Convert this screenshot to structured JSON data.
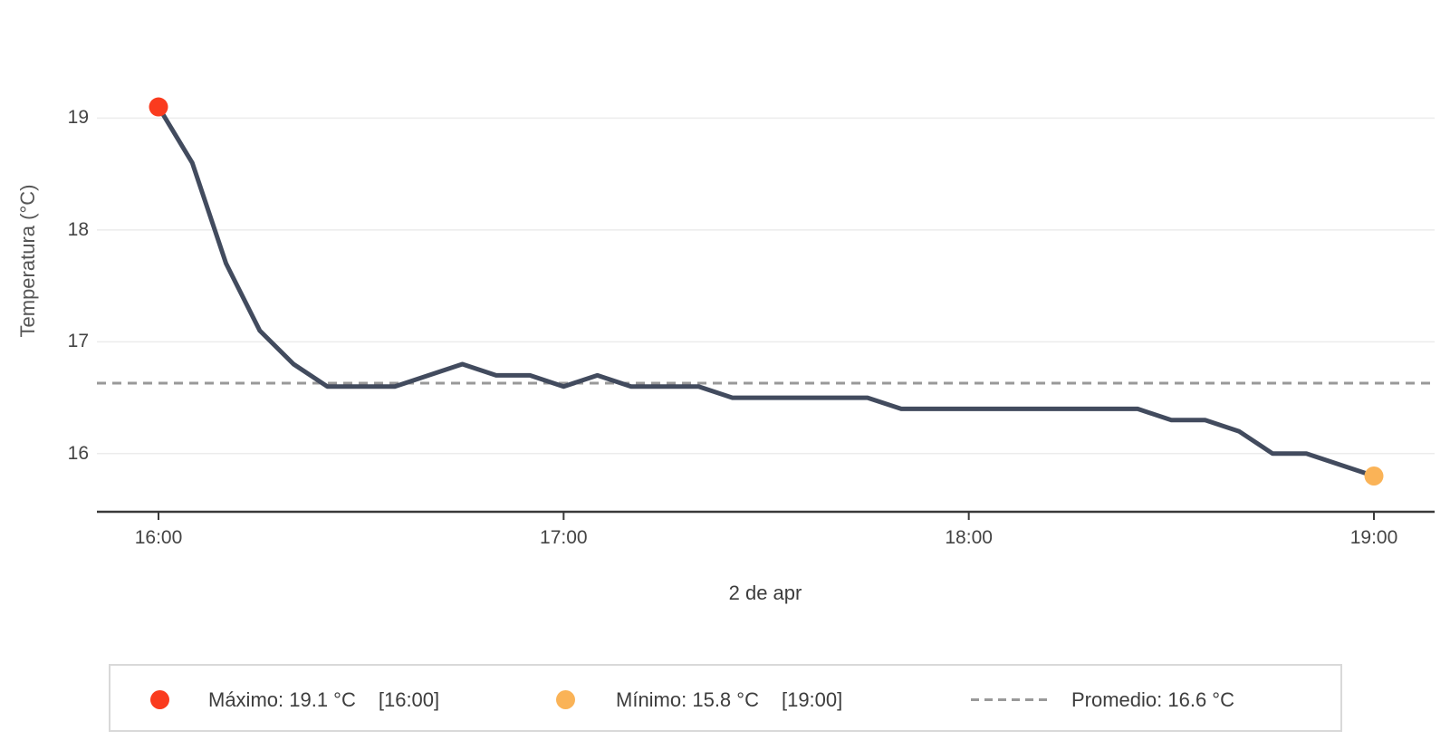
{
  "chart_data": {
    "type": "line",
    "title": "",
    "xlabel": "2 de apr",
    "ylabel": "Temperatura (°C)",
    "x": [
      "16:00",
      "16:05",
      "16:10",
      "16:15",
      "16:20",
      "16:25",
      "16:30",
      "16:35",
      "16:40",
      "16:45",
      "16:50",
      "16:55",
      "17:00",
      "17:05",
      "17:10",
      "17:15",
      "17:20",
      "17:25",
      "17:30",
      "17:35",
      "17:40",
      "17:45",
      "17:50",
      "17:55",
      "18:00",
      "18:05",
      "18:10",
      "18:15",
      "18:20",
      "18:25",
      "18:30",
      "18:35",
      "18:40",
      "18:45",
      "18:50",
      "18:55",
      "19:00"
    ],
    "values": [
      19.1,
      18.6,
      17.7,
      17.1,
      16.8,
      16.6,
      16.6,
      16.6,
      16.7,
      16.8,
      16.7,
      16.7,
      16.6,
      16.7,
      16.6,
      16.6,
      16.6,
      16.5,
      16.5,
      16.5,
      16.5,
      16.5,
      16.4,
      16.4,
      16.4,
      16.4,
      16.4,
      16.4,
      16.4,
      16.4,
      16.3,
      16.3,
      16.2,
      16.0,
      16.0,
      15.9,
      15.8
    ],
    "x_tick_labels": [
      "16:00",
      "17:00",
      "18:00",
      "19:00"
    ],
    "x_tick_indices": [
      0,
      12,
      24,
      36
    ],
    "y_ticks": [
      16,
      17,
      18,
      19
    ],
    "y_tick_labels": [
      "16",
      "17",
      "18",
      "19"
    ],
    "ylim": [
      15.48,
      19.57
    ],
    "grid": "horizontal",
    "legend_position": "bottom",
    "average_value": 16.63,
    "max": {
      "value": 19.1,
      "time": "16:00"
    },
    "min": {
      "value": 15.8,
      "time": "19:00"
    },
    "colors": {
      "line": "#424b5e",
      "max_marker": "#fa3b1e",
      "min_marker": "#fab357",
      "average": "#999999",
      "grid": "#ececec",
      "axis": "#3a3a3a",
      "text": "#444444"
    }
  },
  "legend": {
    "items": [
      {
        "label": "Máximo: 19.1 °C",
        "bracket": "[16:00]",
        "marker": "dot",
        "color": "#fa3b1e"
      },
      {
        "label": "Mínimo: 15.8 °C",
        "bracket": "[19:00]",
        "marker": "dot",
        "color": "#fab357"
      },
      {
        "label": "Promedio: 16.6 °C",
        "bracket": "",
        "marker": "dashed-line",
        "color": "#999999"
      }
    ]
  }
}
